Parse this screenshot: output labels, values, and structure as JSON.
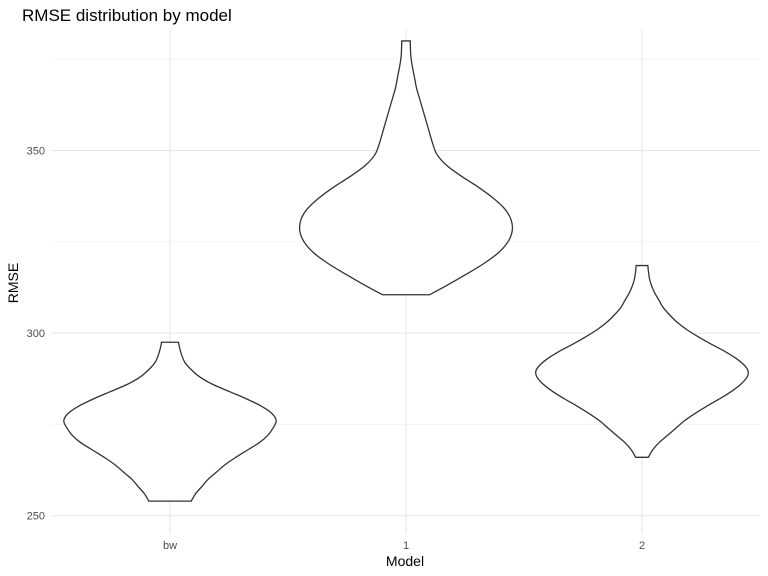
{
  "chart_data": {
    "type": "violin",
    "title": "RMSE distribution by model",
    "xlabel": "Model",
    "ylabel": "RMSE",
    "categories": [
      "bw",
      "1",
      "2"
    ],
    "ylim": [
      245,
      383
    ],
    "y_ticks": [
      250,
      300,
      350
    ],
    "y_minor_ticks": [
      275,
      325,
      375
    ],
    "grid": true,
    "legend": "none",
    "series": [
      {
        "category": "bw",
        "min": 254,
        "max": 297.5,
        "profile": [
          [
            254,
            0.2
          ],
          [
            256,
            0.24
          ],
          [
            258,
            0.3
          ],
          [
            260,
            0.36
          ],
          [
            262,
            0.44
          ],
          [
            264,
            0.52
          ],
          [
            266,
            0.62
          ],
          [
            268,
            0.73
          ],
          [
            270,
            0.84
          ],
          [
            272,
            0.92
          ],
          [
            274,
            0.97
          ],
          [
            276,
            1.0
          ],
          [
            278,
            0.96
          ],
          [
            280,
            0.86
          ],
          [
            282,
            0.72
          ],
          [
            284,
            0.56
          ],
          [
            286,
            0.4
          ],
          [
            288,
            0.28
          ],
          [
            290,
            0.2
          ],
          [
            292,
            0.14
          ],
          [
            294,
            0.11
          ],
          [
            296,
            0.09
          ],
          [
            297.5,
            0.08
          ]
        ]
      },
      {
        "category": "1",
        "min": 310.5,
        "max": 380,
        "profile": [
          [
            310.5,
            0.22
          ],
          [
            313,
            0.38
          ],
          [
            316,
            0.56
          ],
          [
            319,
            0.73
          ],
          [
            322,
            0.87
          ],
          [
            325,
            0.96
          ],
          [
            328,
            1.0
          ],
          [
            331,
            0.99
          ],
          [
            334,
            0.93
          ],
          [
            337,
            0.82
          ],
          [
            340,
            0.68
          ],
          [
            343,
            0.52
          ],
          [
            346,
            0.38
          ],
          [
            349,
            0.29
          ],
          [
            352,
            0.25
          ],
          [
            355,
            0.22
          ],
          [
            358,
            0.19
          ],
          [
            361,
            0.16
          ],
          [
            364,
            0.13
          ],
          [
            367,
            0.1
          ],
          [
            370,
            0.08
          ],
          [
            373,
            0.06
          ],
          [
            376,
            0.045
          ],
          [
            380,
            0.04
          ]
        ]
      },
      {
        "category": "2",
        "min": 266,
        "max": 318.5,
        "profile": [
          [
            266,
            0.06
          ],
          [
            268,
            0.1
          ],
          [
            270,
            0.16
          ],
          [
            272,
            0.24
          ],
          [
            274,
            0.32
          ],
          [
            276,
            0.4
          ],
          [
            278,
            0.5
          ],
          [
            280,
            0.61
          ],
          [
            282,
            0.73
          ],
          [
            284,
            0.84
          ],
          [
            286,
            0.93
          ],
          [
            288,
            0.99
          ],
          [
            289.5,
            1.0
          ],
          [
            291,
            0.97
          ],
          [
            293,
            0.89
          ],
          [
            295,
            0.78
          ],
          [
            297,
            0.65
          ],
          [
            299,
            0.53
          ],
          [
            301,
            0.42
          ],
          [
            303,
            0.33
          ],
          [
            305,
            0.26
          ],
          [
            307,
            0.2
          ],
          [
            309,
            0.16
          ],
          [
            311,
            0.12
          ],
          [
            313,
            0.09
          ],
          [
            315,
            0.07
          ],
          [
            317,
            0.06
          ],
          [
            318.5,
            0.055
          ]
        ]
      }
    ]
  }
}
